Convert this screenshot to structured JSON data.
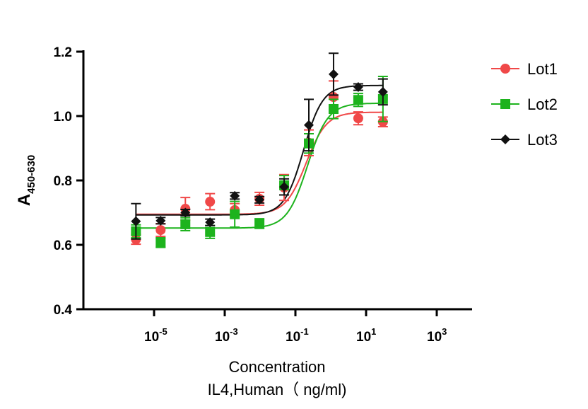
{
  "chart_data": {
    "type": "scatter",
    "title": "",
    "xlabel": "Concentration",
    "xlabel_line2": "IL4,Human（ ng/ml)",
    "ylabel_main": "A",
    "ylabel_sub": "450-630",
    "xscale": "log",
    "xlim": [
      1e-07,
      10000.0
    ],
    "ylim": [
      0.4,
      1.2
    ],
    "xticks": [
      {
        "exp": "-5",
        "value": 1e-05
      },
      {
        "exp": "-3",
        "value": 0.001
      },
      {
        "exp": "-1",
        "value": 0.1
      },
      {
        "exp": "1",
        "value": 10
      },
      {
        "exp": "3",
        "value": 1000
      }
    ],
    "yticks": [
      "0.4",
      "0.6",
      "0.8",
      "1.0",
      "1.2"
    ],
    "grid": false,
    "legend_position": "right",
    "x": [
      3.07e-06,
      1.536e-05,
      7.68e-05,
      0.000384,
      0.00192,
      0.0096,
      0.048,
      0.24,
      1.2,
      6,
      30
    ],
    "series": [
      {
        "name": "Lot1",
        "color": "#f04848",
        "marker": "circle",
        "values": [
          0.617,
          0.646,
          0.712,
          0.734,
          0.708,
          0.743,
          0.778,
          0.917,
          1.059,
          0.993,
          0.982
        ],
        "errors": [
          0.015,
          0.02,
          0.035,
          0.025,
          0.02,
          0.02,
          0.04,
          0.04,
          0.05,
          0.02,
          0.015
        ],
        "fit": {
          "bottom": 0.695,
          "top": 1.012,
          "ec50": 0.2,
          "hill": 1.5
        }
      },
      {
        "name": "Lot2",
        "color": "#1db31d",
        "marker": "square",
        "values": [
          0.642,
          0.607,
          0.664,
          0.64,
          0.695,
          0.666,
          0.785,
          0.915,
          1.022,
          1.05,
          1.053
        ],
        "errors": [
          0.02,
          0.015,
          0.02,
          0.02,
          0.04,
          0.015,
          0.03,
          0.03,
          0.03,
          0.02,
          0.07
        ],
        "fit": {
          "bottom": 0.652,
          "top": 1.04,
          "ec50": 0.22,
          "hill": 1.5
        }
      },
      {
        "name": "Lot3",
        "color": "#111111",
        "marker": "diamond",
        "values": [
          0.673,
          0.675,
          0.7,
          0.67,
          0.752,
          0.74,
          0.78,
          0.972,
          1.13,
          1.09,
          1.075
        ],
        "errors": [
          0.055,
          0.01,
          0.01,
          0.01,
          0.01,
          0.01,
          0.025,
          0.08,
          0.065,
          0.01,
          0.04
        ],
        "fit": {
          "bottom": 0.693,
          "top": 1.095,
          "ec50": 0.17,
          "hill": 1.6
        }
      }
    ]
  }
}
